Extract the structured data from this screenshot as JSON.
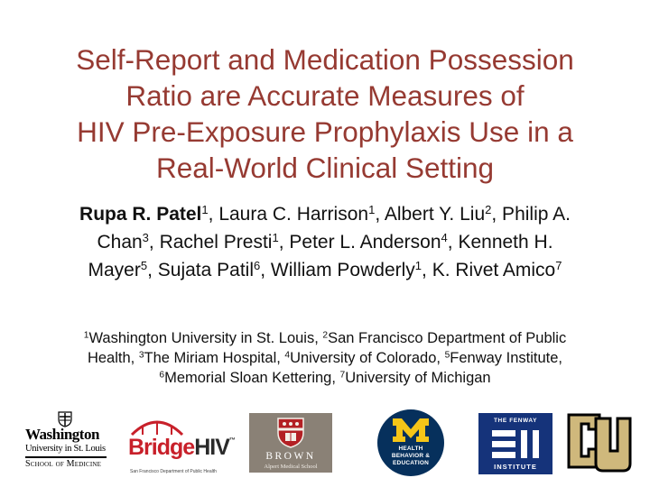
{
  "slide": {
    "title_lines": [
      "Self-Report and Medication Possession",
      "Ratio are Accurate Measures of",
      "HIV Pre-Exposure Prophylaxis Use in a",
      "Real-World Clinical Setting"
    ],
    "authors_lines": [
      [
        {
          "text": "Rupa R. Patel",
          "bold": true
        },
        {
          "sup": "1"
        },
        {
          "text": ", Laura C. Harrison"
        },
        {
          "sup": "1"
        },
        {
          "text": ", Albert Y. Liu"
        },
        {
          "sup": "2"
        },
        {
          "text": ", Philip A."
        }
      ],
      [
        {
          "text": "Chan"
        },
        {
          "sup": "3"
        },
        {
          "text": ", Rachel Presti"
        },
        {
          "sup": "1"
        },
        {
          "text": ", Peter L. Anderson"
        },
        {
          "sup": "4"
        },
        {
          "text": ", Kenneth H."
        }
      ],
      [
        {
          "text": "Mayer"
        },
        {
          "sup": "5"
        },
        {
          "text": ", Sujata Patil"
        },
        {
          "sup": "6"
        },
        {
          "text": ", William Powderly"
        },
        {
          "sup": "1"
        },
        {
          "text": ", K. Rivet Amico"
        },
        {
          "sup": "7"
        }
      ]
    ],
    "affiliations_lines": [
      [
        {
          "sup": "1"
        },
        {
          "text": "Washington University in St. Louis, "
        },
        {
          "sup": "2"
        },
        {
          "text": "San Francisco Department of Public"
        }
      ],
      [
        {
          "text": "Health, "
        },
        {
          "sup": "3"
        },
        {
          "text": "The Miriam Hospital, "
        },
        {
          "sup": "4"
        },
        {
          "text": "University of Colorado, "
        },
        {
          "sup": "5"
        },
        {
          "text": "Fenway Institute,"
        }
      ],
      [
        {
          "sup": "6"
        },
        {
          "text": "Memorial Sloan Kettering, "
        },
        {
          "sup": "7"
        },
        {
          "text": "University of Michigan"
        }
      ]
    ]
  },
  "logos": {
    "washu": {
      "line1": "Washington",
      "line2": "University in St. Louis",
      "line3": "School of Medicine",
      "icon": "crest-icon"
    },
    "bridge": {
      "word_bridge": "Bridge",
      "word_hiv": "HIV",
      "tm": "™",
      "tagline": "San Francisco Department of Public Health",
      "accent": "#c8202a"
    },
    "brown": {
      "name": "BROWN",
      "sub": "Alpert Medical School",
      "bg": "#8a8176",
      "icon": "shield-icon"
    },
    "michigan": {
      "line1": "HEALTH",
      "line2": "BEHAVIOR &",
      "line3": "EDUCATION",
      "bg": "#06305c",
      "accent": "#f5c518"
    },
    "fenway": {
      "top": "THE FENWAY",
      "bottom": "INSTITUTE",
      "bg": "#15337a"
    },
    "colorado": {
      "color_gold": "#cfb87c",
      "color_dark": "#000000"
    }
  },
  "colors": {
    "title": "#963a32",
    "text": "#111111"
  }
}
